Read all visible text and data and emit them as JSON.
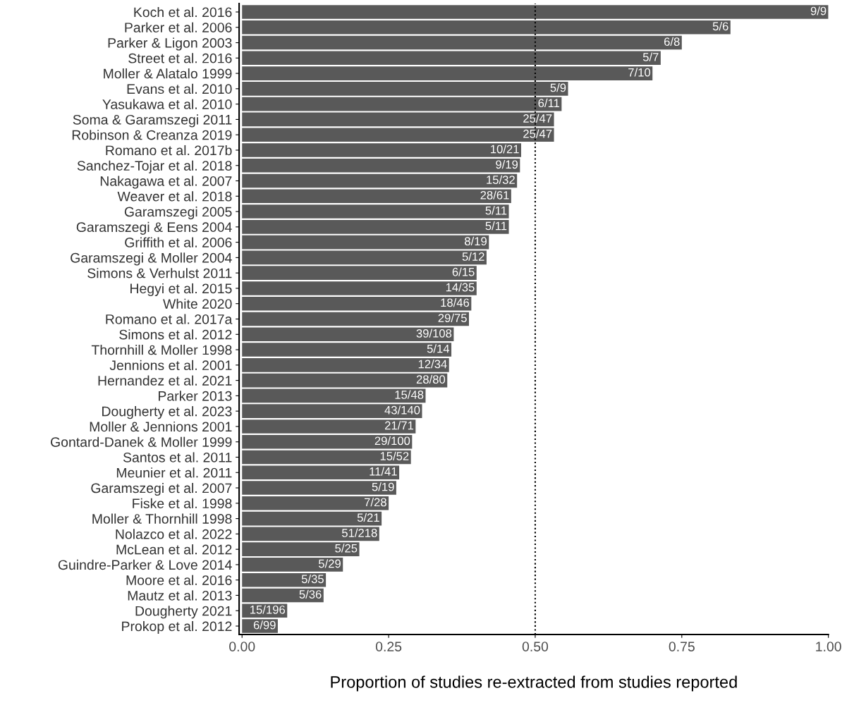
{
  "chart_data": {
    "type": "bar",
    "orientation": "horizontal",
    "xlabel": "Proportion of studies re-extracted from studies reported",
    "categories": [
      "Koch et al. 2016",
      "Parker et al. 2006",
      "Parker & Ligon 2003",
      "Street et al. 2016",
      "Moller & Alatalo 1999",
      "Evans et al. 2010",
      "Yasukawa et al. 2010",
      "Soma & Garamszegi 2011",
      "Robinson & Creanza 2019",
      "Romano et al. 2017b",
      "Sanchez-Tojar et al. 2018",
      "Nakagawa et al. 2007",
      "Weaver et al. 2018",
      "Garamszegi 2005",
      "Garamszegi & Eens 2004",
      "Griffith et al. 2006",
      "Garamszegi & Moller 2004",
      "Simons & Verhulst 2011",
      "Hegyi et al. 2015",
      "White 2020",
      "Romano et al. 2017a",
      "Simons et al. 2012",
      "Thornhill & Moller 1998",
      "Jennions et al. 2001",
      "Hernandez et al. 2021",
      "Parker 2013",
      "Dougherty et al. 2023",
      "Moller & Jennions 2001",
      "Gontard-Danek & Moller 1999",
      "Santos et al. 2011",
      "Meunier et al. 2011",
      "Garamszegi et al. 2007",
      "Fiske et al. 1998",
      "Moller & Thornhill 1998",
      "Nolazco et al. 2022",
      "McLean et al. 2012",
      "Guindre-Parker & Love 2014",
      "Moore et al. 2016",
      "Mautz et al. 2013",
      "Dougherty 2021",
      "Prokop et al. 2012"
    ],
    "values": [
      1,
      0.833,
      0.75,
      0.714,
      0.7,
      0.556,
      0.545,
      0.532,
      0.532,
      0.476,
      0.474,
      0.469,
      0.459,
      0.455,
      0.455,
      0.421,
      0.417,
      0.4,
      0.4,
      0.391,
      0.387,
      0.361,
      0.357,
      0.353,
      0.35,
      0.313,
      0.307,
      0.296,
      0.29,
      0.288,
      0.268,
      0.263,
      0.25,
      0.238,
      0.234,
      0.2,
      0.172,
      0.143,
      0.139,
      0.077,
      0.061
    ],
    "value_labels": [
      "9/9",
      "5/6",
      "6/8",
      "5/7",
      "7/10",
      "5/9",
      "6/11",
      "25/47",
      "25/47",
      "10/21",
      "9/19",
      "15/32",
      "28/61",
      "5/11",
      "5/11",
      "8/19",
      "5/12",
      "6/15",
      "14/35",
      "18/46",
      "29/75",
      "39/108",
      "5/14",
      "12/34",
      "28/80",
      "15/48",
      "43/140",
      "21/71",
      "29/100",
      "15/52",
      "11/41",
      "5/19",
      "7/28",
      "5/21",
      "51/218",
      "5/25",
      "5/29",
      "5/35",
      "5/36",
      "15/196",
      "6/99"
    ],
    "color": "#595959",
    "xlim": [
      -0.005,
      1.0
    ],
    "xticks": [
      {
        "value": 0,
        "label": "0.00"
      },
      {
        "value": 0.25,
        "label": "0.25"
      },
      {
        "value": 0.5,
        "label": "0.50"
      },
      {
        "value": 0.75,
        "label": "0.75"
      },
      {
        "value": 1.0,
        "label": "1.00"
      }
    ],
    "ref_lines": [
      {
        "axis": "x",
        "value": 0.5,
        "line_style": "dotted",
        "color": "#000000"
      }
    ],
    "grid": false,
    "legend": false
  }
}
